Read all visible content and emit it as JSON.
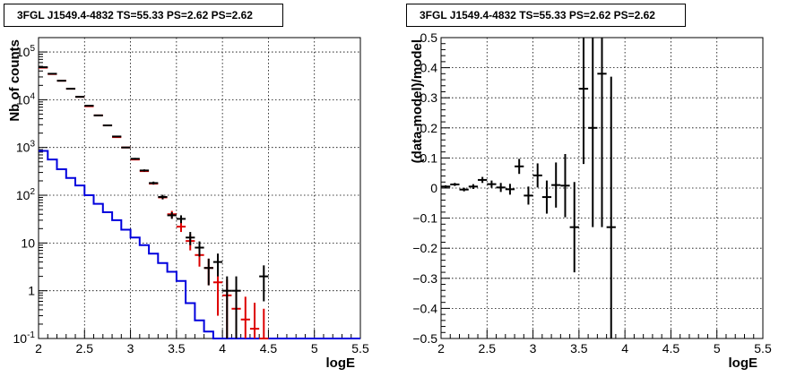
{
  "chart_data": [
    {
      "type": "histogram-errorbars",
      "title": "3FGL J1549.4-4832 TS=55.33 PS=2.62 PS=2.62",
      "xlabel": "logE",
      "ylabel": "Nb of counts",
      "xlim": [
        2,
        5.5
      ],
      "ylim": [
        0.1,
        200000
      ],
      "y_scale": "log",
      "grid": true,
      "x_ticks": [
        "2",
        "2.5",
        "3",
        "3.5",
        "4",
        "4.5",
        "5",
        "5.5"
      ],
      "y_ticks": [
        {
          "value": 0.1,
          "base": "10",
          "exp": "-1"
        },
        {
          "value": 1,
          "base": "1",
          "exp": ""
        },
        {
          "value": 10,
          "base": "10",
          "exp": ""
        },
        {
          "value": 100,
          "base": "10",
          "exp": "2"
        },
        {
          "value": 1000,
          "base": "10",
          "exp": "3"
        },
        {
          "value": 10000,
          "base": "10",
          "exp": "4"
        },
        {
          "value": 100000,
          "base": "10",
          "exp": "5"
        }
      ],
      "bin_width": 0.1,
      "series": [
        {
          "color": "#000000",
          "style": "data points with error bars",
          "points": [
            {
              "x": 2.05,
              "y": 48000,
              "err_lo": 220,
              "err_hi": 220
            },
            {
              "x": 2.15,
              "y": 35000,
              "err_lo": 190,
              "err_hi": 190
            },
            {
              "x": 2.25,
              "y": 25000,
              "err_lo": 160,
              "err_hi": 160
            },
            {
              "x": 2.35,
              "y": 17000,
              "err_lo": 130,
              "err_hi": 130
            },
            {
              "x": 2.45,
              "y": 11500,
              "err_lo": 110,
              "err_hi": 110
            },
            {
              "x": 2.55,
              "y": 7500,
              "err_lo": 90,
              "err_hi": 90
            },
            {
              "x": 2.65,
              "y": 4700,
              "err_lo": 70,
              "err_hi": 70
            },
            {
              "x": 2.75,
              "y": 2900,
              "err_lo": 55,
              "err_hi": 55
            },
            {
              "x": 2.85,
              "y": 1700,
              "err_lo": 40,
              "err_hi": 40
            },
            {
              "x": 2.95,
              "y": 1000,
              "err_lo": 32,
              "err_hi": 32
            },
            {
              "x": 3.05,
              "y": 580,
              "err_lo": 24,
              "err_hi": 24
            },
            {
              "x": 3.15,
              "y": 330,
              "err_lo": 18,
              "err_hi": 18
            },
            {
              "x": 3.25,
              "y": 180,
              "err_lo": 13,
              "err_hi": 13
            },
            {
              "x": 3.35,
              "y": 92,
              "err_lo": 10,
              "err_hi": 10
            },
            {
              "x": 3.45,
              "y": 38,
              "err_lo": 6,
              "err_hi": 6
            },
            {
              "x": 3.55,
              "y": 32,
              "err_lo": 6,
              "err_hi": 6
            },
            {
              "x": 3.65,
              "y": 13,
              "err_lo": 4,
              "err_hi": 4
            },
            {
              "x": 3.75,
              "y": 8,
              "err_lo": 2.8,
              "err_hi": 2.8
            },
            {
              "x": 3.85,
              "y": 3,
              "err_lo": 1.7,
              "err_hi": 1.7
            },
            {
              "x": 3.95,
              "y": 4,
              "err_lo": 2,
              "err_hi": 2
            },
            {
              "x": 4.05,
              "y": 1,
              "err_lo": 0.95,
              "err_hi": 1
            },
            {
              "x": 4.15,
              "y": 1,
              "err_lo": 0.95,
              "err_hi": 1
            },
            {
              "x": 4.45,
              "y": 2,
              "err_lo": 1.4,
              "err_hi": 1.4
            }
          ]
        },
        {
          "color": "#dd0000",
          "style": "model with error bars",
          "points": [
            {
              "x": 2.05,
              "y": 47000,
              "err_lo": 0,
              "err_hi": 0
            },
            {
              "x": 2.15,
              "y": 34500,
              "err_lo": 0,
              "err_hi": 0
            },
            {
              "x": 2.25,
              "y": 25000,
              "err_lo": 0,
              "err_hi": 0
            },
            {
              "x": 2.35,
              "y": 17000,
              "err_lo": 0,
              "err_hi": 0
            },
            {
              "x": 2.45,
              "y": 11500,
              "err_lo": 0,
              "err_hi": 0
            },
            {
              "x": 2.55,
              "y": 7300,
              "err_lo": 0,
              "err_hi": 0
            },
            {
              "x": 2.65,
              "y": 4700,
              "err_lo": 0,
              "err_hi": 0
            },
            {
              "x": 2.75,
              "y": 2900,
              "err_lo": 0,
              "err_hi": 0
            },
            {
              "x": 2.85,
              "y": 1650,
              "err_lo": 0,
              "err_hi": 0
            },
            {
              "x": 2.95,
              "y": 1000,
              "err_lo": 0,
              "err_hi": 0
            },
            {
              "x": 3.05,
              "y": 560,
              "err_lo": 0,
              "err_hi": 0
            },
            {
              "x": 3.15,
              "y": 320,
              "err_lo": 0,
              "err_hi": 0
            },
            {
              "x": 3.25,
              "y": 175,
              "err_lo": 0,
              "err_hi": 0
            },
            {
              "x": 3.35,
              "y": 90,
              "err_lo": 8,
              "err_hi": 8
            },
            {
              "x": 3.45,
              "y": 40,
              "err_lo": 7,
              "err_hi": 7
            },
            {
              "x": 3.55,
              "y": 22,
              "err_lo": 5,
              "err_hi": 5
            },
            {
              "x": 3.65,
              "y": 11,
              "err_lo": 4,
              "err_hi": 4
            },
            {
              "x": 3.75,
              "y": 5.6,
              "err_lo": 2.4,
              "err_hi": 2.4
            },
            {
              "x": 3.85,
              "y": 3,
              "err_lo": 1.7,
              "err_hi": 1.7
            },
            {
              "x": 3.95,
              "y": 1.5,
              "err_lo": 1.2,
              "err_hi": 1.2
            },
            {
              "x": 4.05,
              "y": 0.8,
              "err_lo": 0.7,
              "err_hi": 0.9
            },
            {
              "x": 4.15,
              "y": 0.42,
              "err_lo": 0.32,
              "err_hi": 0.65
            },
            {
              "x": 4.25,
              "y": 0.25,
              "err_lo": 0.15,
              "err_hi": 0.5
            },
            {
              "x": 4.35,
              "y": 0.16,
              "err_lo": 0.06,
              "err_hi": 0.4
            },
            {
              "x": 4.45,
              "y": 0.1,
              "err_lo": 0,
              "err_hi": 0.32
            }
          ]
        },
        {
          "color": "#0000dd",
          "style": "step histogram",
          "bin_low_edges": [
            2.0,
            2.1,
            2.2,
            2.3,
            2.4,
            2.5,
            2.6,
            2.7,
            2.8,
            2.9,
            3.0,
            3.1,
            3.2,
            3.3,
            3.4,
            3.5,
            3.6,
            3.7,
            3.8,
            3.9,
            4.0,
            4.1,
            4.2,
            4.3,
            4.4,
            4.5,
            4.6,
            4.7,
            4.8,
            4.9,
            5.0,
            5.1,
            5.2,
            5.3,
            5.4
          ],
          "values": [
            850,
            560,
            350,
            230,
            160,
            100,
            66,
            44,
            30,
            19,
            13,
            9,
            6,
            3.8,
            2.5,
            1.6,
            0.55,
            0.24,
            0.14,
            0.1,
            0.1,
            0.1,
            0.1,
            0.1,
            0.1,
            0.1,
            0.1,
            0.1,
            0.1,
            0.1,
            0.1,
            0.1,
            0.1,
            0.1,
            0.1
          ]
        }
      ]
    },
    {
      "type": "scatter-errorbars",
      "title": "3FGL J1549.4-4832 TS=55.33 PS=2.62 PS=2.62",
      "xlabel": "logE",
      "ylabel": "(data-model)/model",
      "xlim": [
        2,
        5.5
      ],
      "ylim": [
        -0.5,
        0.5
      ],
      "grid": true,
      "x_ticks": [
        "2",
        "2.5",
        "3",
        "3.5",
        "4",
        "4.5",
        "5",
        "5.5"
      ],
      "y_ticks": [
        "−0.5",
        "−0.4",
        "−0.3",
        "−0.2",
        "−0.1",
        "0",
        "0.1",
        "0.2",
        "0.3",
        "0.4",
        "0.5"
      ],
      "y_tick_values": [
        -0.5,
        -0.4,
        -0.3,
        -0.2,
        -0.1,
        0,
        0.1,
        0.2,
        0.3,
        0.4,
        0.5
      ],
      "series": [
        {
          "color": "#000000",
          "points": [
            {
              "x": 2.05,
              "y": 0.005,
              "err": 0.004
            },
            {
              "x": 2.15,
              "y": 0.012,
              "err": 0.005
            },
            {
              "x": 2.25,
              "y": -0.005,
              "err": 0.006
            },
            {
              "x": 2.35,
              "y": 0.005,
              "err": 0.008
            },
            {
              "x": 2.45,
              "y": 0.027,
              "err": 0.01
            },
            {
              "x": 2.55,
              "y": 0.013,
              "err": 0.012
            },
            {
              "x": 2.65,
              "y": 0.002,
              "err": 0.015
            },
            {
              "x": 2.75,
              "y": -0.004,
              "err": 0.018
            },
            {
              "x": 2.85,
              "y": 0.072,
              "err": 0.025
            },
            {
              "x": 2.95,
              "y": -0.025,
              "err": 0.03
            },
            {
              "x": 3.05,
              "y": 0.042,
              "err": 0.04
            },
            {
              "x": 3.15,
              "y": -0.03,
              "err": 0.055
            },
            {
              "x": 3.25,
              "y": 0.01,
              "err": 0.075
            },
            {
              "x": 3.35,
              "y": 0.008,
              "err": 0.105
            },
            {
              "x": 3.45,
              "y": -0.13,
              "err": 0.15
            },
            {
              "x": 3.55,
              "y": 0.33,
              "err": 0.25
            },
            {
              "x": 3.65,
              "y": 0.2,
              "err": 0.33
            },
            {
              "x": 3.75,
              "y": 0.38,
              "err": 0.51
            },
            {
              "x": 3.85,
              "y": -0.13,
              "err": 0.5
            }
          ]
        }
      ]
    }
  ]
}
